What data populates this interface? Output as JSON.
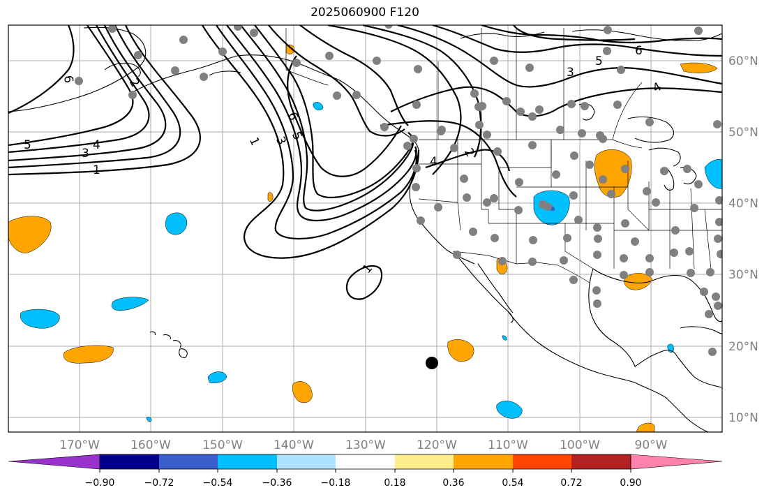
{
  "title": "2025060900 F120",
  "colors": {
    "station_dot": "#808080",
    "contour": "#000000",
    "positive": "#ffa500",
    "negative": "#00bfff"
  },
  "longitude_labels": [
    "170°W",
    "160°W",
    "150°W",
    "140°W",
    "130°W",
    "120°W",
    "110°W",
    "100°W",
    "90°W"
  ],
  "latitude_labels": [
    "60°N",
    "50°N",
    "40°N",
    "30°N",
    "20°N",
    "10°N"
  ],
  "contour_labels": [
    "6",
    "2",
    "5",
    "4",
    "3",
    "1",
    "6",
    "5",
    "3",
    "4",
    "2",
    "1",
    "3",
    "5",
    "6",
    "4"
  ],
  "colorbar": {
    "colors": [
      "#9932cc",
      "#00008b",
      "#3a5fcd",
      "#00bfff",
      "#aee2ff",
      "#ffffff",
      "#ffec8b",
      "#ffa500",
      "#ff4500",
      "#b22222",
      "#ff82ab"
    ],
    "tick_labels": [
      "−0.90",
      "−0.72",
      "−0.54",
      "−0.36",
      "−0.18",
      "0.18",
      "0.36",
      "0.54",
      "0.72",
      "0.90"
    ]
  }
}
